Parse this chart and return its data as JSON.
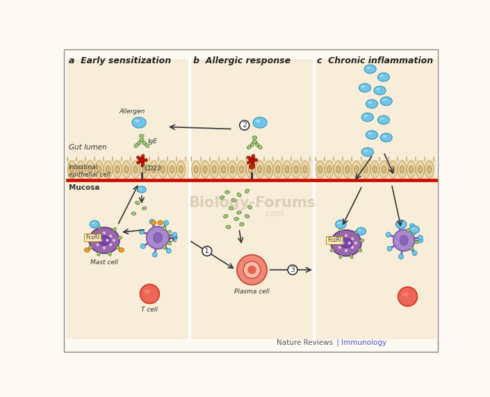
{
  "panel_a_title": "a  Early sensitization",
  "panel_b_title": "b  Allergic response",
  "panel_c_title": "c  Chronic inflammation",
  "footer_left": "Nature Reviews",
  "footer_right": " | Immunology",
  "bg_color": "#FEFAF3",
  "panel_bg": "#F7EDD8",
  "mucosa_bg": "#F0E2C5",
  "epi_cell_color": "#E8D5A5",
  "epi_cell_edge": "#C8A86A",
  "epi_nucleus_color": "#D4BC82",
  "red_line_color": "#CC1100",
  "allergen_color": "#72C5E8",
  "allergen_edge": "#3A9ABB",
  "ige_color": "#A8C878",
  "ige_edge": "#5A8844",
  "cd23_receptor_color": "#CC2200",
  "cd23_stem_color": "#222222",
  "mast_cell_color": "#9966AA",
  "mast_cell_edge": "#663388",
  "mast_nucleus_color": "#7744AA",
  "dc_cell_color": "#AA88CC",
  "dc_cell_edge": "#7755AA",
  "dc_nucleus_color": "#8866BB",
  "t_cell_color": "#EE6655",
  "t_cell_edge": "#CC3322",
  "plasma_outer_color": "#EE8877",
  "plasma_inner_color": "#FFBBAA",
  "plasma_core_color": "#DD6655",
  "label_color": "#333333",
  "arrow_color": "#333333",
  "wm_color": "#C8B89A",
  "border_color": "#888888",
  "divider_color": "#FFFFFF",
  "granule_color": "#DDBBEE",
  "orange_blob_color": "#E8A030"
}
